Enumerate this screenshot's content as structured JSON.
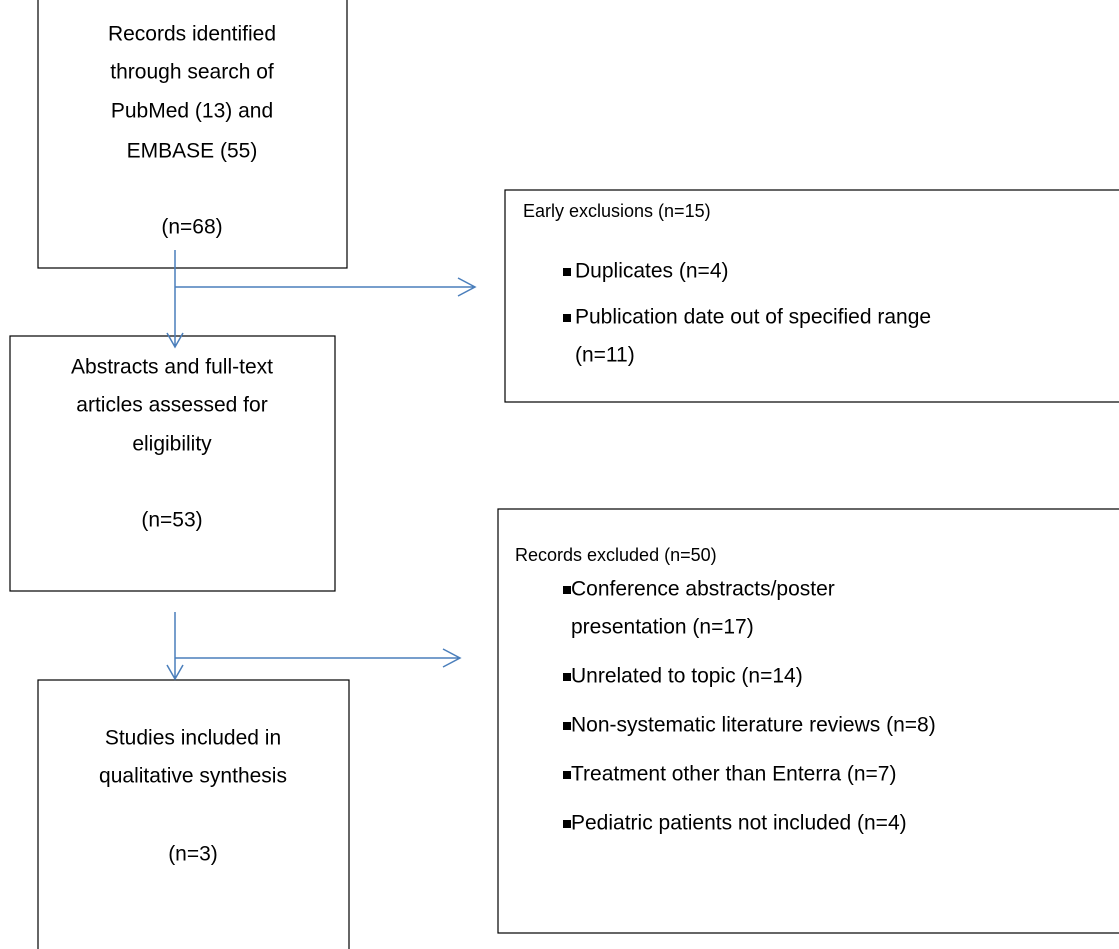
{
  "nodes": [
    {
      "lines": [
        "Records identified",
        "through search of",
        "PubMed (13) and",
        "EMBASE (55)",
        "(n=68)"
      ]
    },
    {
      "lines": [
        "Abstracts and full-text",
        "articles assessed for",
        "eligibility",
        "(n=53)"
      ]
    },
    {
      "lines": [
        "Studies included in",
        "qualitative synthesis",
        "(n=3)"
      ]
    }
  ],
  "exclusions": [
    {
      "heading": "Early exclusions (n=15)",
      "items": [
        {
          "lines": [
            "Duplicates (n=4)"
          ]
        },
        {
          "lines": [
            "Publication date out of specified range",
            "(n=11)"
          ]
        }
      ]
    },
    {
      "heading": "Records excluded (n=50)",
      "items": [
        {
          "lines": [
            "Conference abstracts/poster",
            "presentation (n=17)"
          ]
        },
        {
          "lines": [
            "Unrelated to topic (n=14)"
          ]
        },
        {
          "lines": [
            "Non-systematic literature reviews (n=8)"
          ]
        },
        {
          "lines": [
            "Treatment other than Enterra (n=7)"
          ]
        },
        {
          "lines": [
            "Pediatric patients not included (n=4)"
          ]
        }
      ]
    }
  ]
}
